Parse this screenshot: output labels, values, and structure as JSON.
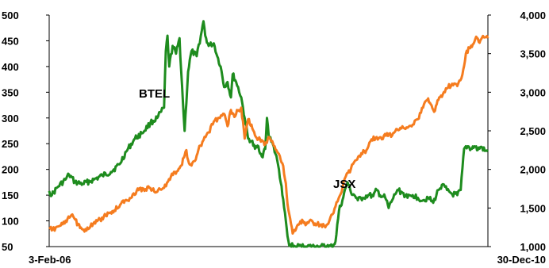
{
  "chart_data": {
    "type": "line",
    "title": "",
    "xlabel": "",
    "ylabel_left": "",
    "ylabel_right": "",
    "x_tick_labels": [
      "3-Feb-06",
      "30-Dec-10"
    ],
    "x_range": [
      "2006-02-03",
      "2010-12-30"
    ],
    "y_left": {
      "range": [
        50,
        500
      ],
      "ticks": [
        "50",
        "100",
        "150",
        "200",
        "250",
        "300",
        "350",
        "400",
        "450",
        "500"
      ]
    },
    "y_right": {
      "range": [
        1000,
        4000
      ],
      "ticks": [
        "1,000",
        "1,500",
        "2,000",
        "2,500",
        "3,000",
        "3,500",
        "4,000"
      ]
    },
    "grid": false,
    "legend": "none",
    "series": [
      {
        "name": "BTEL",
        "axis": "left",
        "color": "#1e8c1e",
        "points": [
          [
            "2006-02-03",
            158
          ],
          [
            "2006-02-14",
            150
          ],
          [
            "2006-03-08",
            165
          ],
          [
            "2006-04-10",
            180
          ],
          [
            "2006-04-25",
            190
          ],
          [
            "2006-05-19",
            175
          ],
          [
            "2006-06-20",
            172
          ],
          [
            "2006-08-04",
            180
          ],
          [
            "2006-09-08",
            188
          ],
          [
            "2006-10-13",
            195
          ],
          [
            "2006-11-17",
            210
          ],
          [
            "2006-12-15",
            235
          ],
          [
            "2007-01-19",
            260
          ],
          [
            "2007-02-16",
            270
          ],
          [
            "2007-03-23",
            290
          ],
          [
            "2007-04-20",
            300
          ],
          [
            "2007-05-18",
            320
          ],
          [
            "2007-05-25",
            430
          ],
          [
            "2007-06-01",
            460
          ],
          [
            "2007-06-08",
            400
          ],
          [
            "2007-06-22",
            440
          ],
          [
            "2007-07-06",
            425
          ],
          [
            "2007-07-20",
            455
          ],
          [
            "2007-08-03",
            330
          ],
          [
            "2007-08-10",
            275
          ],
          [
            "2007-08-24",
            390
          ],
          [
            "2007-09-07",
            430
          ],
          [
            "2007-09-28",
            420
          ],
          [
            "2007-10-19",
            470
          ],
          [
            "2007-10-26",
            488
          ],
          [
            "2007-11-02",
            460
          ],
          [
            "2007-11-16",
            440
          ],
          [
            "2007-12-07",
            445
          ],
          [
            "2007-12-21",
            420
          ],
          [
            "2008-01-04",
            400
          ],
          [
            "2008-01-18",
            360
          ],
          [
            "2008-02-01",
            370
          ],
          [
            "2008-02-15",
            340
          ],
          [
            "2008-02-22",
            385
          ],
          [
            "2008-03-07",
            370
          ],
          [
            "2008-03-28",
            340
          ],
          [
            "2008-04-11",
            300
          ],
          [
            "2008-04-25",
            260
          ],
          [
            "2008-05-09",
            255
          ],
          [
            "2008-05-23",
            240
          ],
          [
            "2008-06-06",
            245
          ],
          [
            "2008-06-20",
            225
          ],
          [
            "2008-07-04",
            240
          ],
          [
            "2008-07-11",
            300
          ],
          [
            "2008-07-18",
            265
          ],
          [
            "2008-08-01",
            255
          ],
          [
            "2008-08-15",
            230
          ],
          [
            "2008-08-29",
            200
          ],
          [
            "2008-09-12",
            150
          ],
          [
            "2008-09-26",
            100
          ],
          [
            "2008-10-03",
            70
          ],
          [
            "2008-10-10",
            52
          ],
          [
            "2008-11-07",
            50
          ],
          [
            "2008-12-19",
            50
          ],
          [
            "2009-02-13",
            50
          ],
          [
            "2009-03-20",
            50
          ],
          [
            "2009-04-03",
            50
          ],
          [
            "2009-04-17",
            60
          ],
          [
            "2009-05-01",
            120
          ],
          [
            "2009-05-15",
            140
          ],
          [
            "2009-05-29",
            165
          ],
          [
            "2009-06-05",
            175
          ],
          [
            "2009-06-19",
            155
          ],
          [
            "2009-07-03",
            150
          ],
          [
            "2009-07-17",
            140
          ],
          [
            "2009-08-07",
            145
          ],
          [
            "2009-08-28",
            150
          ],
          [
            "2009-09-18",
            148
          ],
          [
            "2009-10-02",
            160
          ],
          [
            "2009-10-16",
            150
          ],
          [
            "2009-11-06",
            145
          ],
          [
            "2009-11-20",
            125
          ],
          [
            "2009-12-04",
            140
          ],
          [
            "2009-12-25",
            160
          ],
          [
            "2010-01-15",
            155
          ],
          [
            "2010-02-05",
            145
          ],
          [
            "2010-02-26",
            150
          ],
          [
            "2010-03-19",
            145
          ],
          [
            "2010-04-09",
            140
          ],
          [
            "2010-04-30",
            145
          ],
          [
            "2010-05-21",
            135
          ],
          [
            "2010-06-11",
            160
          ],
          [
            "2010-06-25",
            170
          ],
          [
            "2010-07-16",
            160
          ],
          [
            "2010-08-06",
            152
          ],
          [
            "2010-08-27",
            150
          ],
          [
            "2010-09-10",
            160
          ],
          [
            "2010-09-24",
            240
          ],
          [
            "2010-10-08",
            245
          ],
          [
            "2010-10-22",
            240
          ],
          [
            "2010-11-05",
            245
          ],
          [
            "2010-11-19",
            238
          ],
          [
            "2010-12-03",
            244
          ],
          [
            "2010-12-17",
            236
          ],
          [
            "2010-12-30",
            235
          ]
        ]
      },
      {
        "name": "JSX",
        "axis": "right",
        "color": "#f57c1f",
        "points": [
          [
            "2006-02-03",
            1230
          ],
          [
            "2006-02-17",
            1220
          ],
          [
            "2006-03-10",
            1260
          ],
          [
            "2006-04-07",
            1300
          ],
          [
            "2006-05-05",
            1410
          ],
          [
            "2006-05-12",
            1390
          ],
          [
            "2006-06-09",
            1240
          ],
          [
            "2006-06-23",
            1220
          ],
          [
            "2006-07-21",
            1260
          ],
          [
            "2006-08-18",
            1330
          ],
          [
            "2006-09-22",
            1400
          ],
          [
            "2006-10-27",
            1470
          ],
          [
            "2006-11-24",
            1560
          ],
          [
            "2006-12-29",
            1630
          ],
          [
            "2007-01-26",
            1720
          ],
          [
            "2007-02-23",
            1750
          ],
          [
            "2007-03-23",
            1760
          ],
          [
            "2007-04-20",
            1710
          ],
          [
            "2007-05-18",
            1760
          ],
          [
            "2007-06-15",
            1910
          ],
          [
            "2007-07-13",
            1980
          ],
          [
            "2007-07-27",
            2050
          ],
          [
            "2007-08-10",
            2180
          ],
          [
            "2007-08-17",
            2250
          ],
          [
            "2007-08-24",
            2120
          ],
          [
            "2007-09-07",
            2050
          ],
          [
            "2007-09-21",
            2110
          ],
          [
            "2007-10-05",
            2250
          ],
          [
            "2007-10-26",
            2380
          ],
          [
            "2007-11-16",
            2480
          ],
          [
            "2007-12-07",
            2620
          ],
          [
            "2007-12-28",
            2670
          ],
          [
            "2008-01-18",
            2720
          ],
          [
            "2008-02-01",
            2560
          ],
          [
            "2008-02-15",
            2770
          ],
          [
            "2008-02-29",
            2680
          ],
          [
            "2008-03-14",
            2760
          ],
          [
            "2008-03-28",
            2800
          ],
          [
            "2008-04-11",
            2400
          ],
          [
            "2008-04-25",
            2650
          ],
          [
            "2008-05-09",
            2580
          ],
          [
            "2008-05-23",
            2440
          ],
          [
            "2008-06-06",
            2390
          ],
          [
            "2008-06-20",
            2380
          ],
          [
            "2008-07-04",
            2330
          ],
          [
            "2008-07-18",
            2420
          ],
          [
            "2008-08-01",
            2370
          ],
          [
            "2008-08-15",
            2260
          ],
          [
            "2008-08-29",
            2200
          ],
          [
            "2008-09-12",
            2080
          ],
          [
            "2008-09-26",
            1820
          ],
          [
            "2008-10-03",
            1550
          ],
          [
            "2008-10-10",
            1420
          ],
          [
            "2008-10-24",
            1170
          ],
          [
            "2008-11-07",
            1230
          ],
          [
            "2008-11-21",
            1300
          ],
          [
            "2008-12-05",
            1330
          ],
          [
            "2008-12-19",
            1290
          ],
          [
            "2009-01-09",
            1340
          ],
          [
            "2009-01-23",
            1300
          ],
          [
            "2009-02-13",
            1280
          ],
          [
            "2009-03-06",
            1250
          ],
          [
            "2009-03-27",
            1380
          ],
          [
            "2009-04-17",
            1520
          ],
          [
            "2009-05-08",
            1680
          ],
          [
            "2009-05-29",
            1910
          ],
          [
            "2009-06-19",
            2010
          ],
          [
            "2009-07-10",
            2120
          ],
          [
            "2009-07-31",
            2210
          ],
          [
            "2009-08-21",
            2250
          ],
          [
            "2009-09-11",
            2390
          ],
          [
            "2009-10-02",
            2420
          ],
          [
            "2009-10-23",
            2390
          ],
          [
            "2009-11-13",
            2470
          ],
          [
            "2009-12-04",
            2440
          ],
          [
            "2009-12-25",
            2520
          ],
          [
            "2010-01-15",
            2560
          ],
          [
            "2010-02-05",
            2540
          ],
          [
            "2010-02-26",
            2580
          ],
          [
            "2010-03-19",
            2650
          ],
          [
            "2010-04-09",
            2800
          ],
          [
            "2010-04-30",
            2920
          ],
          [
            "2010-05-14",
            2830
          ],
          [
            "2010-05-28",
            2760
          ],
          [
            "2010-06-11",
            2900
          ],
          [
            "2010-06-25",
            2940
          ],
          [
            "2010-07-16",
            3050
          ],
          [
            "2010-08-06",
            3110
          ],
          [
            "2010-08-27",
            3080
          ],
          [
            "2010-09-17",
            3230
          ],
          [
            "2010-10-01",
            3500
          ],
          [
            "2010-10-15",
            3580
          ],
          [
            "2010-10-29",
            3620
          ],
          [
            "2010-11-12",
            3720
          ],
          [
            "2010-11-26",
            3640
          ],
          [
            "2010-12-10",
            3730
          ],
          [
            "2010-12-30",
            3700
          ]
        ]
      }
    ]
  }
}
